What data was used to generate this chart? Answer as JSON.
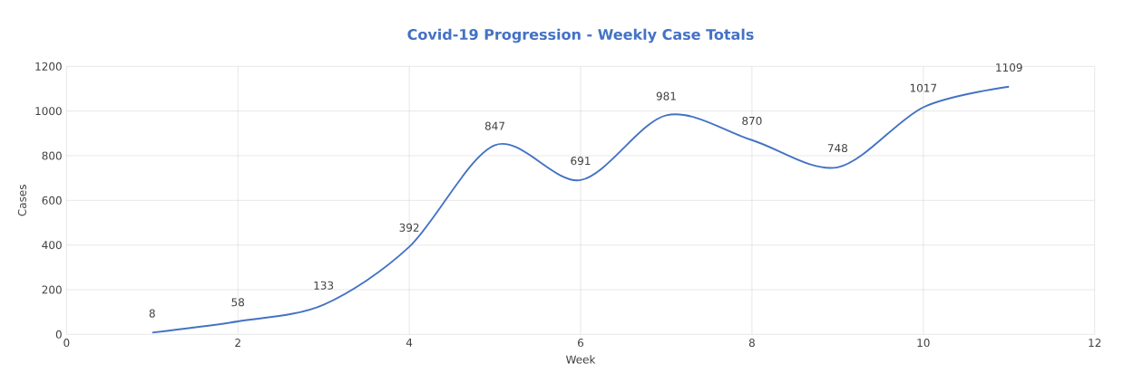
{
  "chart_data": {
    "type": "line",
    "title": "Covid-19 Progression - Weekly Case Totals",
    "xlabel": "Week",
    "ylabel": "Cases",
    "x": [
      1,
      2,
      3,
      4,
      5,
      6,
      7,
      8,
      9,
      10,
      11
    ],
    "series": [
      {
        "color": "#4472c4",
        "values": [
          8,
          58,
          133,
          392,
          847,
          691,
          981,
          870,
          748,
          1017,
          1109
        ]
      }
    ],
    "xlim": [
      0,
      12
    ],
    "xticks": [
      0,
      2,
      4,
      6,
      8,
      10,
      12
    ],
    "ylim": [
      0,
      1200
    ],
    "yticks": [
      0,
      200,
      400,
      600,
      800,
      1000,
      1200
    ],
    "grid": true,
    "data_labels": true,
    "marker": "none",
    "line_style": "solid"
  }
}
